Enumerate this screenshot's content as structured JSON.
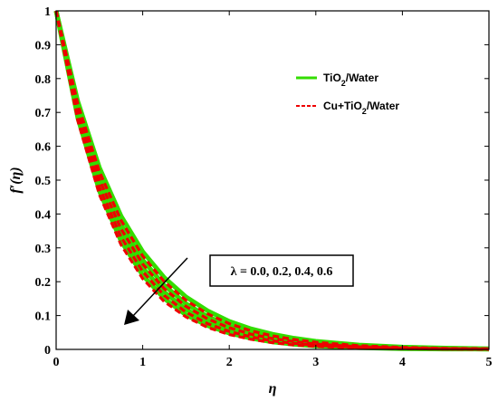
{
  "chart_data": {
    "type": "line",
    "title": "",
    "xlabel": "η",
    "ylabel": "f′(η)",
    "xlim": [
      0,
      5
    ],
    "ylim": [
      0,
      1
    ],
    "xticks": [
      "0",
      "1",
      "2",
      "3",
      "4",
      "5"
    ],
    "yticks": [
      "0",
      "0.1",
      "0.2",
      "0.3",
      "0.4",
      "0.5",
      "0.6",
      "0.7",
      "0.8",
      "0.9",
      "1"
    ],
    "grid": false,
    "legend_position": "top-right",
    "legend": [
      {
        "label_main": "TiO",
        "label_sub": "2",
        "label_rest": "/Water",
        "color": "#33dd00",
        "style": "solid"
      },
      {
        "label_main": "Cu+TiO",
        "label_sub": "2",
        "label_rest": "/Water",
        "color": "#ee0000",
        "style": "dashed"
      }
    ],
    "annotation": "λ = 0.0, 0.2, 0.4, 0.6",
    "x": [
      0,
      0.25,
      0.5,
      0.75,
      1.0,
      1.25,
      1.5,
      1.75,
      2.0,
      2.25,
      2.5,
      2.75,
      3.0,
      3.5,
      4.0,
      4.5,
      5.0
    ],
    "series": [
      {
        "group": "TiO2/Water",
        "lambda": 0.0,
        "values": [
          1,
          0.733,
          0.537,
          0.394,
          0.289,
          0.212,
          0.155,
          0.114,
          0.083,
          0.061,
          0.045,
          0.033,
          0.024,
          0.013,
          0.007,
          0.004,
          0.002
        ]
      },
      {
        "group": "TiO2/Water",
        "lambda": 0.2,
        "values": [
          1,
          0.717,
          0.513,
          0.368,
          0.264,
          0.189,
          0.135,
          0.097,
          0.069,
          0.05,
          0.036,
          0.026,
          0.018,
          0.009,
          0.005,
          0.002,
          0.001
        ]
      },
      {
        "group": "TiO2/Water",
        "lambda": 0.4,
        "values": [
          1,
          0.701,
          0.491,
          0.344,
          0.241,
          0.169,
          0.118,
          0.083,
          0.058,
          0.041,
          0.028,
          0.02,
          0.014,
          0.007,
          0.003,
          0.002,
          0.001
        ]
      },
      {
        "group": "TiO2/Water",
        "lambda": 0.6,
        "values": [
          1,
          0.684,
          0.468,
          0.32,
          0.219,
          0.15,
          0.102,
          0.07,
          0.048,
          0.033,
          0.022,
          0.015,
          0.01,
          0.005,
          0.002,
          0.001,
          0.001
        ]
      },
      {
        "group": "Cu+TiO2/Water",
        "lambda": 0.0,
        "values": [
          1,
          0.725,
          0.525,
          0.381,
          0.276,
          0.2,
          0.145,
          0.105,
          0.076,
          0.055,
          0.04,
          0.029,
          0.021,
          0.011,
          0.006,
          0.003,
          0.002
        ]
      },
      {
        "group": "Cu+TiO2/Water",
        "lambda": 0.2,
        "values": [
          1,
          0.709,
          0.502,
          0.356,
          0.252,
          0.179,
          0.127,
          0.09,
          0.064,
          0.045,
          0.032,
          0.023,
          0.016,
          0.008,
          0.004,
          0.002,
          0.001
        ]
      },
      {
        "group": "Cu+TiO2/Water",
        "lambda": 0.4,
        "values": [
          1,
          0.692,
          0.479,
          0.332,
          0.23,
          0.159,
          0.11,
          0.076,
          0.053,
          0.037,
          0.025,
          0.018,
          0.012,
          0.006,
          0.003,
          0.001,
          0.001
        ]
      },
      {
        "group": "Cu+TiO2/Water",
        "lambda": 0.6,
        "values": [
          1,
          0.676,
          0.457,
          0.309,
          0.209,
          0.141,
          0.096,
          0.065,
          0.044,
          0.03,
          0.02,
          0.013,
          0.009,
          0.004,
          0.002,
          0.001,
          0.0
        ]
      }
    ],
    "colors": {
      "tio2": "#33dd00",
      "cu": "#ee0000",
      "axis": "#000000"
    }
  }
}
